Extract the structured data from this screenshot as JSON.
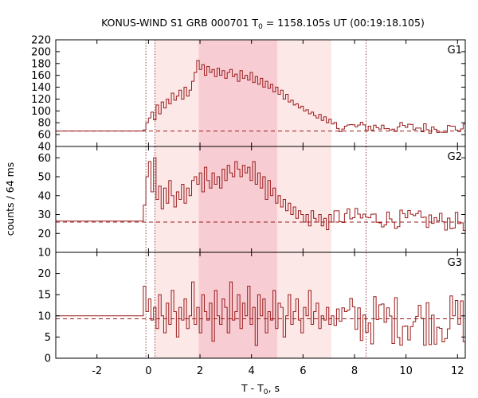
{
  "chart_data": {
    "type": "line",
    "title": "KONUS-WIND S1 GRB 000701 T",
    "title_sub": "0",
    "title_rest": " = 1158.105s UT (00:19:18.105)",
    "xlabel": "T - T",
    "xlabel_sub": "0",
    "xlabel_rest": ", s",
    "ylabel": "counts / 64 ms",
    "xlim": [
      -3.6,
      12.3
    ],
    "x_ticks": [
      -2,
      0,
      2,
      4,
      6,
      8,
      10,
      12
    ],
    "x_tick_labels": [
      "-2",
      "0",
      "2",
      "4",
      "6",
      "8",
      "10",
      "12"
    ],
    "vlines": [
      -0.1,
      0.25,
      8.45
    ],
    "shaded_regions": [
      {
        "from": 0.25,
        "to": 7.1,
        "color": "#fde8e8"
      },
      {
        "from": 1.95,
        "to": 5.0,
        "color": "#f7cdd3"
      }
    ],
    "line_color": "#9b1b1b",
    "panels": [
      {
        "name": "G1",
        "ylim": [
          40,
          220
        ],
        "y_ticks": [
          40,
          60,
          80,
          100,
          120,
          140,
          160,
          180,
          200,
          220
        ],
        "y_tick_labels": [
          "40",
          "60",
          "80",
          "100",
          "120",
          "140",
          "160",
          "180",
          "200",
          "220"
        ],
        "background_level": 66,
        "pre_level": 66,
        "post_base": 70,
        "post_amp": 4,
        "post_noise": 9,
        "values": [
          68,
          80,
          88,
          98,
          85,
          110,
          95,
          115,
          105,
          120,
          112,
          130,
          118,
          125,
          135,
          120,
          140,
          125,
          135,
          150,
          165,
          185,
          170,
          178,
          160,
          175,
          165,
          170,
          158,
          172,
          160,
          168,
          155,
          165,
          170,
          158,
          162,
          150,
          168,
          155,
          160,
          152,
          165,
          148,
          158,
          145,
          155,
          140,
          150,
          138,
          145,
          132,
          140,
          128,
          135,
          120,
          128,
          115,
          118,
          110,
          112,
          105,
          108,
          100,
          102,
          95,
          98,
          92,
          88,
          94,
          84,
          90,
          80,
          86,
          78
        ]
      },
      {
        "name": "G2",
        "ylim": [
          10,
          66
        ],
        "y_ticks": [
          10,
          20,
          30,
          40,
          50,
          60
        ],
        "y_tick_labels": [
          "10",
          "20",
          "30",
          "40",
          "50",
          "60"
        ],
        "background_level": 26,
        "pre_level": 26.5,
        "post_base": 26,
        "post_amp": 3,
        "post_noise": 5,
        "values": [
          35,
          50,
          58,
          42,
          60,
          38,
          45,
          33,
          44,
          36,
          48,
          40,
          34,
          42,
          38,
          46,
          36,
          44,
          40,
          48,
          50,
          46,
          52,
          42,
          55,
          48,
          44,
          52,
          46,
          50,
          44,
          54,
          48,
          56,
          52,
          50,
          58,
          54,
          50,
          56,
          52,
          55,
          48,
          58,
          46,
          52,
          44,
          50,
          38,
          48,
          40,
          44,
          36,
          40,
          34,
          38,
          32,
          36,
          30,
          34,
          28,
          32,
          30,
          26,
          30,
          24,
          32,
          28,
          26,
          30,
          24,
          28,
          22,
          30,
          26
        ]
      },
      {
        "name": "G3",
        "ylim": [
          0,
          25
        ],
        "y_ticks": [
          0,
          5,
          10,
          15,
          20
        ],
        "y_tick_labels": [
          "0",
          "5",
          "10",
          "15",
          "20"
        ],
        "background_level": 9.3,
        "pre_level": 10,
        "post_base": 9,
        "post_amp": 0,
        "post_noise": 6,
        "values": [
          17,
          11,
          14,
          9,
          12,
          7,
          15,
          10,
          6,
          13,
          8,
          16,
          11,
          5,
          12,
          9,
          14,
          7,
          10,
          18,
          8,
          12,
          6,
          15,
          11,
          9,
          13,
          4,
          16,
          10,
          8,
          14,
          12,
          6,
          18,
          9,
          11,
          15,
          7,
          13,
          10,
          17,
          8,
          12,
          3,
          15,
          10,
          14,
          6,
          11,
          9,
          16,
          7,
          13,
          12,
          5,
          10,
          15,
          8,
          11,
          14,
          9,
          6,
          12,
          10,
          16,
          8,
          11,
          13,
          7,
          10,
          9,
          12,
          8,
          10
        ]
      }
    ]
  }
}
